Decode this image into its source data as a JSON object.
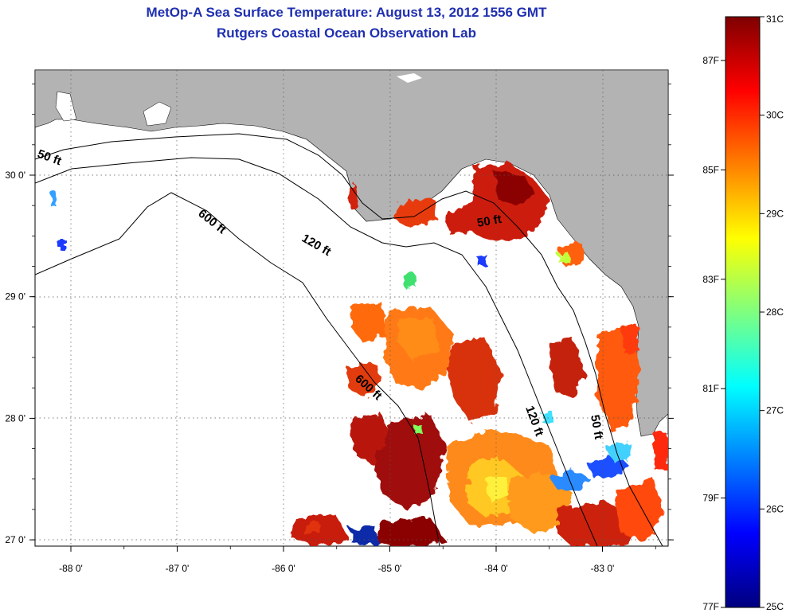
{
  "header": {
    "title": "MetOp-A Sea Surface Temperature:  August 13, 2012 1556 GMT",
    "subtitle": "Rutgers Coastal Ocean Observation Lab"
  },
  "map": {
    "lon_ticks": [
      {
        "value": -88,
        "label": "-88 0'"
      },
      {
        "value": -87,
        "label": "-87 0'"
      },
      {
        "value": -86,
        "label": "-86 0'"
      },
      {
        "value": -85,
        "label": "-85 0'"
      },
      {
        "value": -84,
        "label": "-84 0'"
      },
      {
        "value": -83,
        "label": "-83 0'"
      }
    ],
    "lat_ticks": [
      {
        "value": 30,
        "label": "30 0'"
      },
      {
        "value": 29,
        "label": "29 0'"
      },
      {
        "value": 28,
        "label": "28 0'"
      },
      {
        "value": 27,
        "label": "27 0'"
      }
    ],
    "depth_labels": [
      "50 ft",
      "600 ft",
      "120 ft",
      "50 ft",
      "600 ft",
      "120 ft",
      "50 ft"
    ]
  },
  "colorbar": {
    "celsius": [
      {
        "value": 31,
        "label": "31C"
      },
      {
        "value": 30,
        "label": "30C"
      },
      {
        "value": 29,
        "label": "29C"
      },
      {
        "value": 28,
        "label": "28C"
      },
      {
        "value": 27,
        "label": "27C"
      },
      {
        "value": 26,
        "label": "26C"
      },
      {
        "value": 25,
        "label": "25C"
      }
    ],
    "fahrenheit": [
      {
        "value": 87,
        "label": "87F"
      },
      {
        "value": 85,
        "label": "85F"
      },
      {
        "value": 83,
        "label": "83F"
      },
      {
        "value": 81,
        "label": "81F"
      },
      {
        "value": 79,
        "label": "79F"
      },
      {
        "value": 77,
        "label": "77F"
      }
    ],
    "colors": [
      "#00007f",
      "#0000ff",
      "#007fff",
      "#00ffff",
      "#7fff7f",
      "#ffff00",
      "#ff7f00",
      "#ff0000",
      "#7f0000"
    ]
  }
}
